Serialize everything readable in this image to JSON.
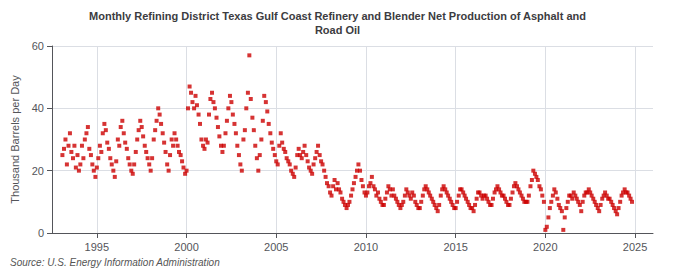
{
  "chart_data": {
    "type": "scatter",
    "title": "Monthly Refining District Texas Gulf Coast Refinery and Blender Net Production of Asphalt and\nRoad Oil",
    "ylabel": "Thousand Barrels per Day",
    "source": "Source: U.S. Energy Information Administration",
    "color": "#cc0000",
    "marker": "square",
    "grid": true,
    "xlim": [
      1992.5,
      2026.0
    ],
    "xticks": [
      1995,
      2000,
      2005,
      2010,
      2015,
      2020,
      2025
    ],
    "ylim": [
      0,
      60
    ],
    "yticks": [
      0,
      20,
      40,
      60
    ],
    "x": [
      1993.08,
      1993.17,
      1993.25,
      1993.33,
      1993.42,
      1993.5,
      1993.58,
      1993.67,
      1993.75,
      1993.83,
      1993.92,
      1994.0,
      1994.08,
      1994.17,
      1994.25,
      1994.33,
      1994.42,
      1994.5,
      1994.58,
      1994.67,
      1994.75,
      1994.83,
      1994.92,
      1995.0,
      1995.08,
      1995.17,
      1995.25,
      1995.33,
      1995.42,
      1995.5,
      1995.58,
      1995.67,
      1995.75,
      1995.83,
      1995.92,
      1996.0,
      1996.08,
      1996.17,
      1996.25,
      1996.33,
      1996.42,
      1996.5,
      1996.58,
      1996.67,
      1996.75,
      1996.83,
      1996.92,
      1997.0,
      1997.08,
      1997.17,
      1997.25,
      1997.33,
      1997.42,
      1997.5,
      1997.58,
      1997.67,
      1997.75,
      1997.83,
      1997.92,
      1998.0,
      1998.08,
      1998.17,
      1998.25,
      1998.33,
      1998.42,
      1998.5,
      1998.58,
      1998.67,
      1998.75,
      1998.83,
      1998.92,
      1999.0,
      1999.08,
      1999.17,
      1999.25,
      1999.33,
      1999.42,
      1999.5,
      1999.58,
      1999.67,
      1999.75,
      1999.83,
      1999.92,
      2000.0,
      2000.08,
      2000.17,
      2000.25,
      2000.33,
      2000.42,
      2000.5,
      2000.58,
      2000.67,
      2000.75,
      2000.83,
      2000.92,
      2001.0,
      2001.08,
      2001.17,
      2001.25,
      2001.33,
      2001.42,
      2001.5,
      2001.58,
      2001.67,
      2001.75,
      2001.83,
      2001.92,
      2002.0,
      2002.08,
      2002.17,
      2002.25,
      2002.33,
      2002.42,
      2002.5,
      2002.58,
      2002.67,
      2002.75,
      2002.83,
      2002.92,
      2003.0,
      2003.08,
      2003.17,
      2003.25,
      2003.33,
      2003.42,
      2003.5,
      2003.58,
      2003.67,
      2003.75,
      2003.83,
      2003.92,
      2004.0,
      2004.08,
      2004.17,
      2004.25,
      2004.33,
      2004.42,
      2004.5,
      2004.58,
      2004.67,
      2004.75,
      2004.83,
      2004.92,
      2005.0,
      2005.08,
      2005.17,
      2005.25,
      2005.33,
      2005.42,
      2005.5,
      2005.58,
      2005.67,
      2005.75,
      2005.83,
      2005.92,
      2006.0,
      2006.08,
      2006.17,
      2006.25,
      2006.33,
      2006.42,
      2006.5,
      2006.58,
      2006.67,
      2006.75,
      2006.83,
      2006.92,
      2007.0,
      2007.08,
      2007.17,
      2007.25,
      2007.33,
      2007.42,
      2007.5,
      2007.58,
      2007.67,
      2007.75,
      2007.83,
      2007.92,
      2008.0,
      2008.08,
      2008.17,
      2008.25,
      2008.33,
      2008.42,
      2008.5,
      2008.58,
      2008.67,
      2008.75,
      2008.83,
      2008.92,
      2009.0,
      2009.08,
      2009.17,
      2009.25,
      2009.33,
      2009.42,
      2009.5,
      2009.58,
      2009.67,
      2009.75,
      2009.83,
      2009.92,
      2010.0,
      2010.08,
      2010.17,
      2010.25,
      2010.33,
      2010.42,
      2010.5,
      2010.58,
      2010.67,
      2010.75,
      2010.83,
      2010.92,
      2011.0,
      2011.08,
      2011.17,
      2011.25,
      2011.33,
      2011.42,
      2011.5,
      2011.58,
      2011.67,
      2011.75,
      2011.83,
      2011.92,
      2012.0,
      2012.08,
      2012.17,
      2012.25,
      2012.33,
      2012.42,
      2012.5,
      2012.58,
      2012.67,
      2012.75,
      2012.83,
      2012.92,
      2013.0,
      2013.08,
      2013.17,
      2013.25,
      2013.33,
      2013.42,
      2013.5,
      2013.58,
      2013.67,
      2013.75,
      2013.83,
      2013.92,
      2014.0,
      2014.08,
      2014.17,
      2014.25,
      2014.33,
      2014.42,
      2014.5,
      2014.58,
      2014.67,
      2014.75,
      2014.83,
      2014.92,
      2015.0,
      2015.08,
      2015.17,
      2015.25,
      2015.33,
      2015.42,
      2015.5,
      2015.58,
      2015.67,
      2015.75,
      2015.83,
      2015.92,
      2016.0,
      2016.08,
      2016.17,
      2016.25,
      2016.33,
      2016.42,
      2016.5,
      2016.58,
      2016.67,
      2016.75,
      2016.83,
      2016.92,
      2017.0,
      2017.08,
      2017.17,
      2017.25,
      2017.33,
      2017.42,
      2017.5,
      2017.58,
      2017.67,
      2017.75,
      2017.83,
      2017.92,
      2018.0,
      2018.08,
      2018.17,
      2018.25,
      2018.33,
      2018.42,
      2018.5,
      2018.58,
      2018.67,
      2018.75,
      2018.83,
      2018.92,
      2019.0,
      2019.08,
      2019.17,
      2019.25,
      2019.33,
      2019.42,
      2019.5,
      2019.58,
      2019.67,
      2019.75,
      2019.83,
      2019.92,
      2020.0,
      2020.08,
      2020.17,
      2020.25,
      2020.33,
      2020.42,
      2020.5,
      2020.58,
      2020.67,
      2020.75,
      2020.83,
      2020.92,
      2021.0,
      2021.08,
      2021.17,
      2021.25,
      2021.33,
      2021.42,
      2021.5,
      2021.58,
      2021.67,
      2021.75,
      2021.83,
      2021.92,
      2022.0,
      2022.08,
      2022.17,
      2022.25,
      2022.33,
      2022.42,
      2022.5,
      2022.58,
      2022.67,
      2022.75,
      2022.83,
      2022.92,
      2023.0,
      2023.08,
      2023.17,
      2023.25,
      2023.33,
      2023.42,
      2023.5,
      2023.58,
      2023.67,
      2023.75,
      2023.83,
      2023.92,
      2024.0,
      2024.08,
      2024.17,
      2024.25,
      2024.33,
      2024.42,
      2024.5,
      2024.58,
      2024.67,
      2024.75,
      2024.83
    ],
    "values": [
      25,
      27,
      30,
      22,
      28,
      32,
      26,
      24,
      28,
      21,
      25,
      20,
      22,
      28,
      24,
      30,
      32,
      34,
      27,
      25,
      22,
      20,
      18,
      21,
      24,
      28,
      26,
      32,
      35,
      33,
      29,
      27,
      24,
      22,
      20,
      18,
      23,
      30,
      28,
      34,
      36,
      32,
      29,
      27,
      24,
      22,
      20,
      19,
      22,
      26,
      30,
      33,
      36,
      34,
      31,
      28,
      26,
      24,
      22,
      20,
      24,
      30,
      33,
      36,
      40,
      38,
      35,
      32,
      29,
      26,
      22,
      20,
      25,
      30,
      28,
      32,
      30,
      28,
      26,
      25,
      23,
      21,
      19,
      20,
      40,
      47,
      45,
      42,
      40,
      44,
      41,
      38,
      35,
      30,
      28,
      27,
      30,
      29,
      38,
      43,
      45,
      42,
      40,
      37,
      34,
      31,
      28,
      26,
      28,
      32,
      36,
      40,
      44,
      42,
      38,
      35,
      32,
      28,
      25,
      22,
      20,
      30,
      33,
      40,
      45,
      57,
      43,
      37,
      33,
      28,
      24,
      20,
      25,
      30,
      36,
      44,
      42,
      39,
      35,
      32,
      29,
      27,
      25,
      23,
      22,
      28,
      32,
      29,
      27,
      26,
      24,
      23,
      22,
      20,
      19,
      18,
      21,
      25,
      27,
      25,
      24,
      26,
      28,
      25,
      23,
      21,
      20,
      19,
      22,
      24,
      26,
      28,
      25,
      23,
      22,
      20,
      18,
      16,
      15,
      13,
      12,
      15,
      17,
      14,
      16,
      14,
      13,
      11,
      10,
      9,
      8,
      9,
      10,
      12,
      14,
      16,
      18,
      20,
      22,
      20,
      17,
      15,
      13,
      12,
      13,
      15,
      16,
      18,
      15,
      14,
      12,
      13,
      11,
      10,
      9,
      9,
      11,
      13,
      15,
      14,
      12,
      14,
      12,
      11,
      10,
      9,
      8,
      9,
      10,
      12,
      14,
      13,
      12,
      11,
      13,
      12,
      10,
      9,
      8,
      8,
      10,
      12,
      14,
      15,
      14,
      13,
      12,
      11,
      10,
      9,
      8,
      7,
      9,
      12,
      14,
      15,
      14,
      13,
      12,
      11,
      10,
      9,
      8,
      8,
      10,
      12,
      14,
      14,
      13,
      12,
      11,
      10,
      9,
      8,
      8,
      7,
      9,
      11,
      13,
      13,
      12,
      11,
      12,
      12,
      11,
      10,
      9,
      9,
      11,
      13,
      14,
      15,
      14,
      13,
      12,
      12,
      11,
      10,
      9,
      9,
      11,
      13,
      15,
      16,
      15,
      14,
      13,
      12,
      11,
      10,
      10,
      10,
      12,
      15,
      17,
      20,
      19,
      18,
      17,
      15,
      14,
      12,
      10,
      1,
      2,
      5,
      8,
      10,
      12,
      14,
      13,
      11,
      9,
      8,
      7,
      1,
      5,
      8,
      10,
      12,
      12,
      11,
      13,
      12,
      11,
      10,
      9,
      7,
      10,
      12,
      13,
      13,
      14,
      13,
      12,
      11,
      10,
      9,
      8,
      7,
      9,
      11,
      12,
      13,
      12,
      11,
      11,
      10,
      9,
      8,
      7,
      6,
      8,
      10,
      12,
      13,
      14,
      13,
      13,
      12,
      11,
      10
    ]
  }
}
